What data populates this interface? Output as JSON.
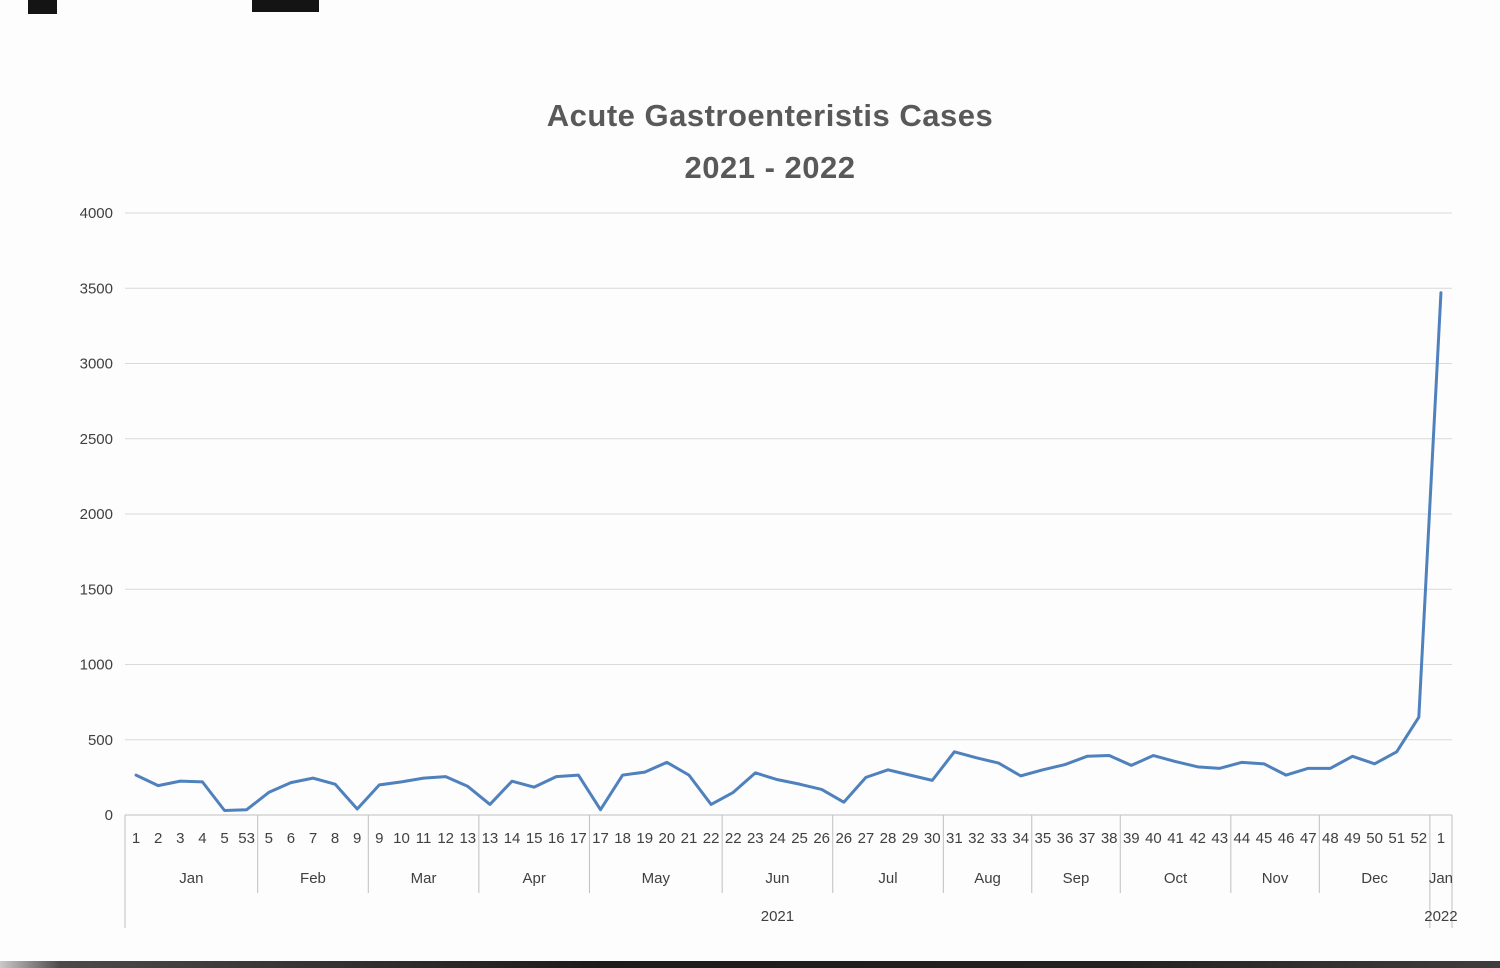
{
  "title": {
    "line1": "Acute Gastroenteristis Cases",
    "line2": "2021 - 2022"
  },
  "chart_data": {
    "type": "line",
    "title": "Acute Gastroenteristis Cases 2021 - 2022",
    "xlabel": "",
    "ylabel": "",
    "ylim": [
      0,
      4000
    ],
    "yticks": [
      0,
      500,
      1000,
      1500,
      2000,
      2500,
      3000,
      3500,
      4000
    ],
    "grid": true,
    "legend": "none",
    "line_color": "#4f81bd",
    "gridline_color": "#d9d9d9",
    "axis_line_color": "#bfbfbf",
    "label_color": "#404040",
    "months": [
      {
        "label": "Jan",
        "weeks": [
          "1",
          "2",
          "3",
          "4",
          "5",
          "53"
        ],
        "values": [
          265,
          195,
          225,
          220,
          30,
          35
        ]
      },
      {
        "label": "Feb",
        "weeks": [
          "5",
          "6",
          "7",
          "8",
          "9"
        ],
        "values": [
          150,
          215,
          245,
          205,
          40
        ]
      },
      {
        "label": "Mar",
        "weeks": [
          "9",
          "10",
          "11",
          "12",
          "13"
        ],
        "values": [
          200,
          220,
          245,
          255,
          190
        ]
      },
      {
        "label": "Apr",
        "weeks": [
          "13",
          "14",
          "15",
          "16",
          "17"
        ],
        "values": [
          70,
          225,
          185,
          255,
          265
        ]
      },
      {
        "label": "May",
        "weeks": [
          "17",
          "18",
          "19",
          "20",
          "21",
          "22"
        ],
        "values": [
          35,
          265,
          285,
          350,
          265,
          70
        ]
      },
      {
        "label": "Jun",
        "weeks": [
          "22",
          "23",
          "24",
          "25",
          "26"
        ],
        "values": [
          150,
          280,
          235,
          205,
          170
        ]
      },
      {
        "label": "Jul",
        "weeks": [
          "26",
          "27",
          "28",
          "29",
          "30"
        ],
        "values": [
          85,
          250,
          300,
          265,
          230
        ]
      },
      {
        "label": "Aug",
        "weeks": [
          "31",
          "32",
          "33",
          "34"
        ],
        "values": [
          420,
          380,
          345,
          260
        ]
      },
      {
        "label": "Sep",
        "weeks": [
          "35",
          "36",
          "37",
          "38"
        ],
        "values": [
          300,
          335,
          390,
          395
        ]
      },
      {
        "label": "Oct",
        "weeks": [
          "39",
          "40",
          "41",
          "42",
          "43"
        ],
        "values": [
          330,
          395,
          355,
          320,
          310
        ]
      },
      {
        "label": "Nov",
        "weeks": [
          "44",
          "45",
          "46",
          "47"
        ],
        "values": [
          350,
          340,
          265,
          310
        ]
      },
      {
        "label": "Dec",
        "weeks": [
          "48",
          "49",
          "50",
          "51",
          "52"
        ],
        "values": [
          310,
          390,
          340,
          420,
          650
        ]
      },
      {
        "label": "Jan",
        "weeks": [
          "1"
        ],
        "values": [
          3470
        ]
      }
    ],
    "year_groups": [
      {
        "label": "2021",
        "month_count": 12
      },
      {
        "label": "2022",
        "month_count": 1
      }
    ]
  }
}
